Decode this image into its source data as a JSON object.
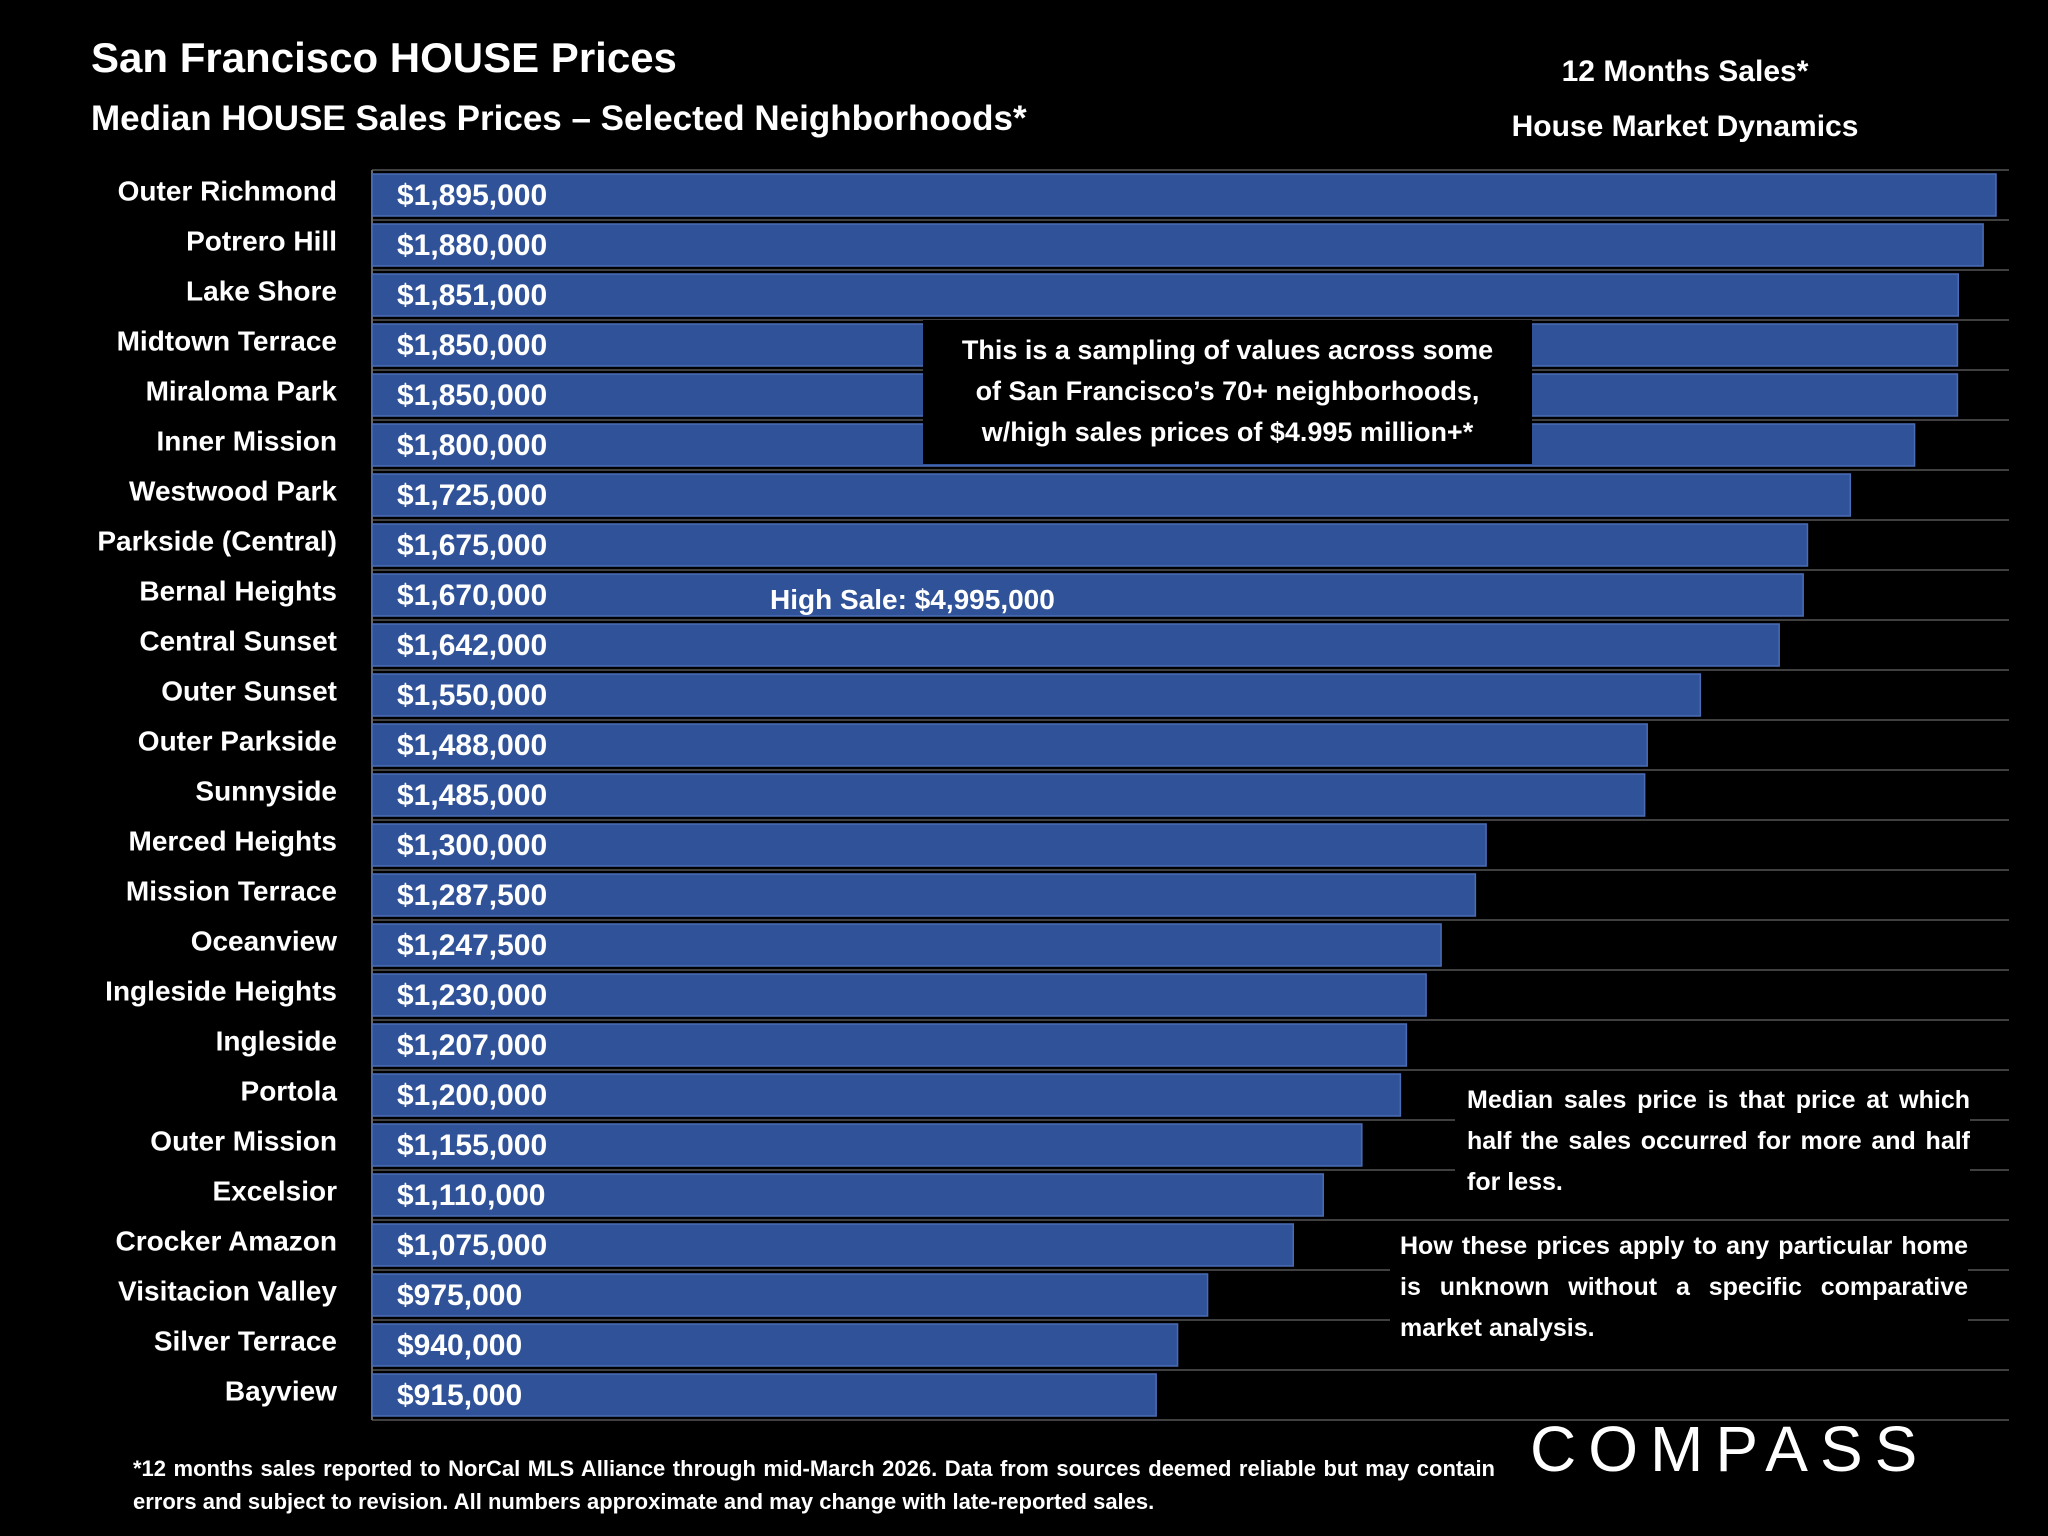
{
  "chart_data": {
    "type": "bar",
    "orientation": "horizontal",
    "title": "San Francisco HOUSE Prices",
    "subtitle": "Median HOUSE Sales Prices – Selected Neighborhoods*",
    "header": [
      "12 Months Sales*",
      "House Market Dynamics"
    ],
    "categories": [
      "Outer Richmond",
      "Potrero Hill",
      "Lake Shore",
      "Midtown Terrace",
      "Miraloma Park",
      "Inner Mission",
      "Westwood Park",
      "Parkside (Central)",
      "Bernal Heights",
      "Central Sunset",
      "Outer Sunset",
      "Outer Parkside",
      "Sunnyside",
      "Merced Heights",
      "Mission Terrace",
      "Oceanview",
      "Ingleside Heights",
      "Ingleside",
      "Portola",
      "Outer Mission",
      "Excelsior",
      "Crocker Amazon",
      "Visitacion Valley",
      "Silver Terrace",
      "Bayview"
    ],
    "values": [
      1895000,
      1880000,
      1851000,
      1850000,
      1850000,
      1800000,
      1725000,
      1675000,
      1670000,
      1642000,
      1550000,
      1488000,
      1485000,
      1300000,
      1287500,
      1247500,
      1230000,
      1207000,
      1200000,
      1155000,
      1110000,
      1075000,
      975000,
      940000,
      915000
    ],
    "value_labels": [
      "$1,895,000",
      "$1,880,000",
      "$1,851,000",
      "$1,850,000",
      "$1,850,000",
      "$1,800,000",
      "$1,725,000",
      "$1,675,000",
      "$1,670,000",
      "$1,642,000",
      "$1,550,000",
      "$1,488,000",
      "$1,485,000",
      "$1,300,000",
      "$1,287,500",
      "$1,247,500",
      "$1,230,000",
      "$1,207,000",
      "$1,200,000",
      "$1,155,000",
      "$1,110,000",
      "$1,075,000",
      "$975,000",
      "$940,000",
      "$915,000"
    ],
    "color": "#2f5299",
    "box_note": [
      "This is a sampling of values across some",
      "of San Francisco’s 70+ neighborhoods,",
      "w/high sales prices of $4.995 million+*"
    ],
    "high_sale": "High Sale:  $4,995,000",
    "notes": [
      "Median sales price is that price at which half the sales occurred for more and half for less.",
      "How these prices apply to any particular home is unknown without a specific comparative market analysis."
    ],
    "footnote": "*12 months sales reported to NorCal MLS Alliance through mid-March 2026. Data from sources deemed reliable but may contain errors and subject to revision. All numbers approximate and may change with late-reported sales.",
    "logo": "COMPASS"
  }
}
